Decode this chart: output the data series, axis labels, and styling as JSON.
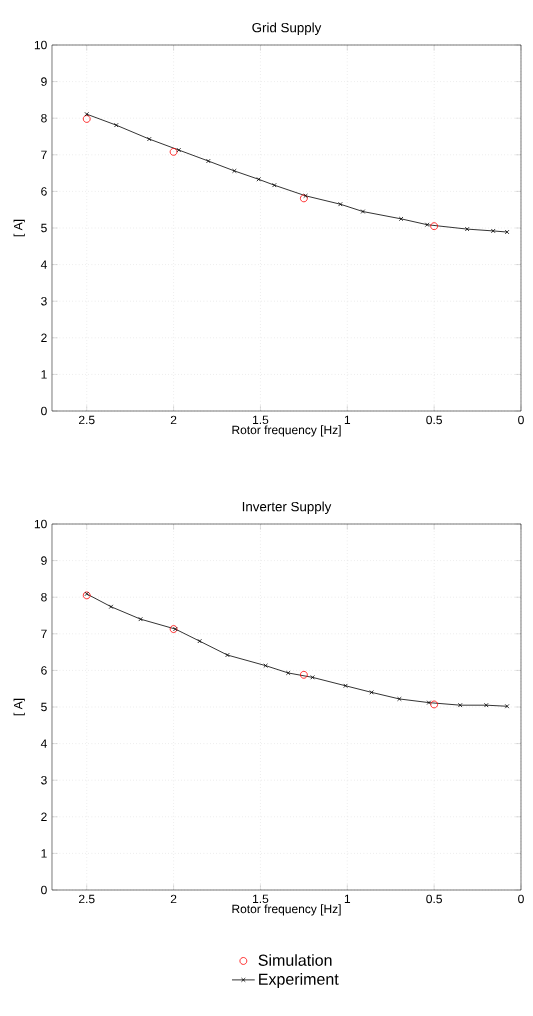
{
  "chart_data": [
    {
      "type": "line",
      "title": "Grid Supply",
      "xlabel": "Rotor frequency [Hz]",
      "ylabel": "[ A]",
      "xlim": [
        2.7,
        0
      ],
      "ylim": [
        0,
        10
      ],
      "xticks": [
        2.5,
        2,
        1.5,
        1,
        0.5,
        0
      ],
      "yticks": [
        0,
        1,
        2,
        3,
        4,
        5,
        6,
        7,
        8,
        9,
        10
      ],
      "grid": true,
      "series": [
        {
          "type": "scatter",
          "marker": "circle",
          "color": "#ff0000",
          "x": [
            2.5,
            2.0,
            1.25,
            0.5
          ],
          "values": [
            7.98,
            7.08,
            5.81,
            5.05
          ]
        },
        {
          "marker": "cross",
          "color": "#000000",
          "x": [
            2.5,
            2.33,
            2.14,
            1.97,
            1.8,
            1.65,
            1.51,
            1.42,
            1.24,
            1.04,
            0.91,
            0.69,
            0.54,
            0.31,
            0.16,
            0.08
          ],
          "values": [
            8.11,
            7.81,
            7.43,
            7.13,
            6.83,
            6.56,
            6.33,
            6.17,
            5.88,
            5.65,
            5.45,
            5.25,
            5.09,
            4.97,
            4.92,
            4.89
          ]
        }
      ]
    },
    {
      "type": "line",
      "title": "Inverter Supply",
      "xlabel": "Rotor frequency [Hz]",
      "ylabel": "[ A]",
      "xlim": [
        2.7,
        0
      ],
      "ylim": [
        0,
        10
      ],
      "xticks": [
        2.5,
        2,
        1.5,
        1,
        0.5,
        0
      ],
      "yticks": [
        0,
        1,
        2,
        3,
        4,
        5,
        6,
        7,
        8,
        9,
        10
      ],
      "grid": true,
      "legend": "bottom",
      "series": [
        {
          "name": "Simulation",
          "type": "scatter",
          "marker": "circle",
          "color": "#ff0000",
          "x": [
            2.5,
            2.0,
            1.25,
            0.5
          ],
          "values": [
            8.05,
            7.13,
            5.88,
            5.07
          ]
        },
        {
          "name": "Experiment",
          "marker": "cross",
          "color": "#000000",
          "x": [
            2.5,
            2.36,
            2.19,
            1.99,
            1.85,
            1.69,
            1.47,
            1.34,
            1.2,
            1.01,
            0.86,
            0.7,
            0.53,
            0.35,
            0.2,
            0.08
          ],
          "values": [
            8.09,
            7.74,
            7.4,
            7.13,
            6.8,
            6.42,
            6.13,
            5.93,
            5.81,
            5.58,
            5.4,
            5.22,
            5.12,
            5.05,
            5.05,
            5.02
          ]
        }
      ]
    }
  ]
}
